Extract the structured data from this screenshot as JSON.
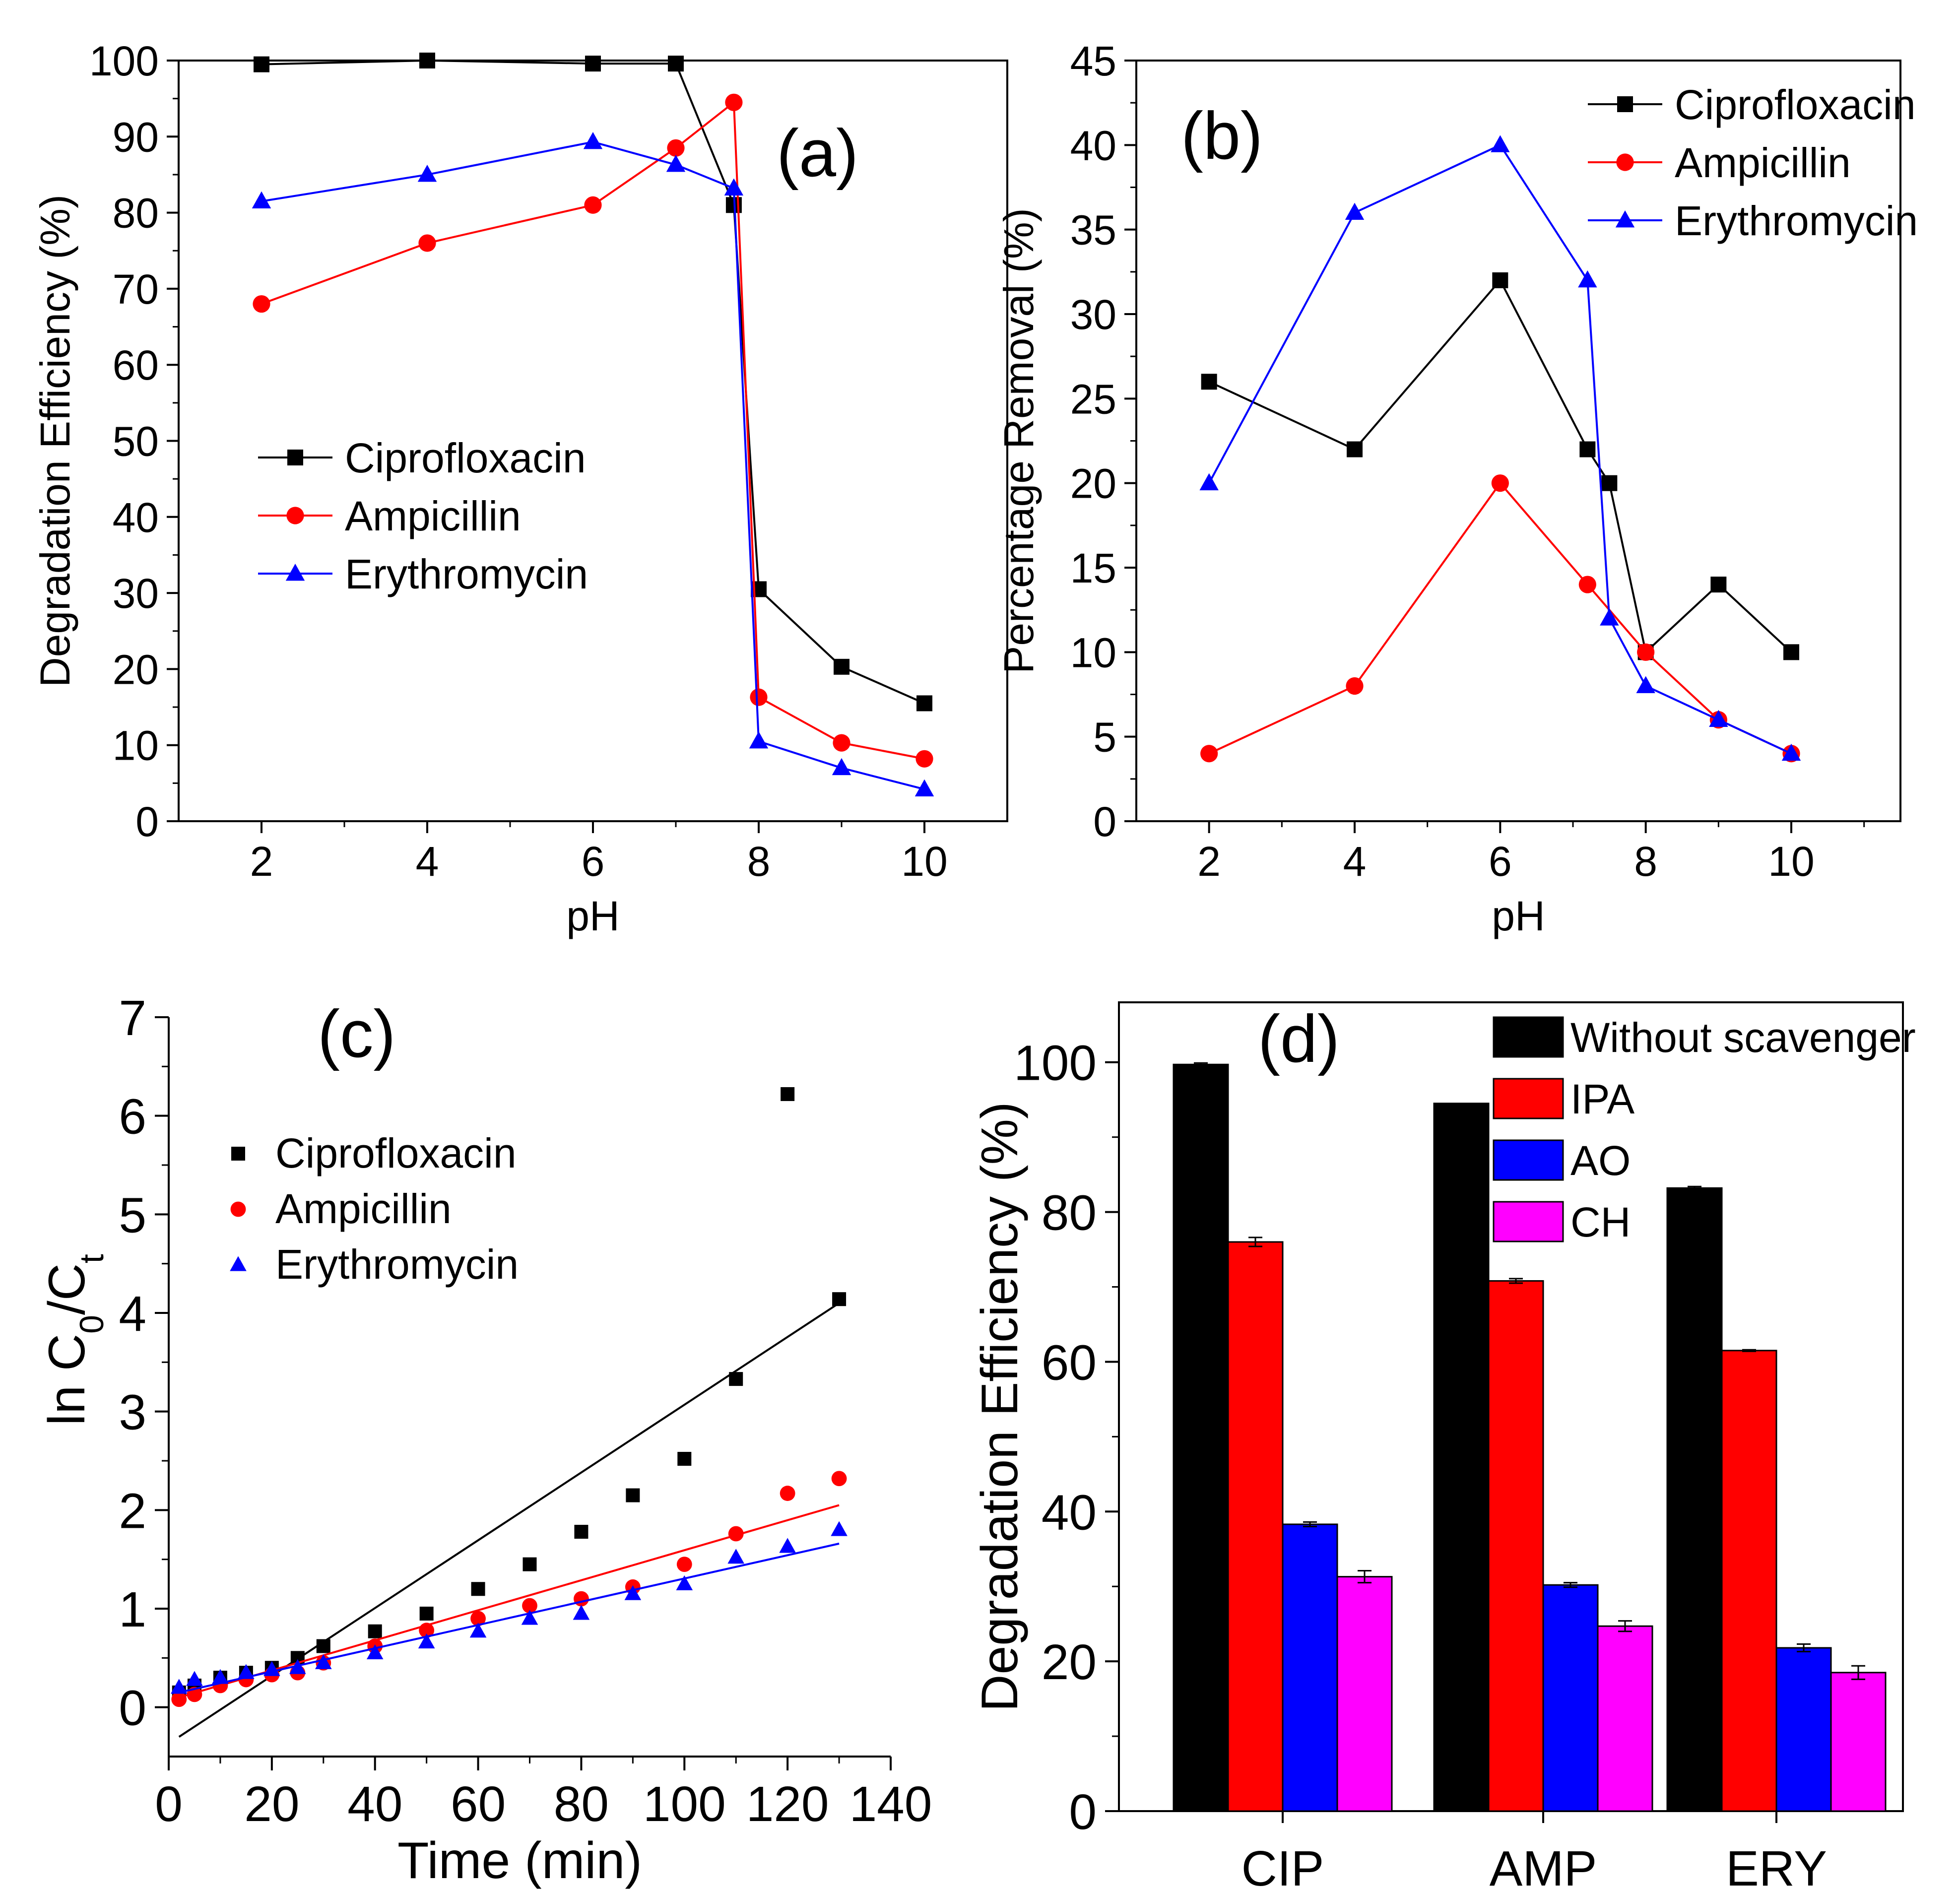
{
  "chart_data": [
    {
      "panel": "(a)",
      "type": "line",
      "xlabel": "pH",
      "ylabel": "Degradation Efficiency (%)",
      "xlim": [
        1,
        11
      ],
      "ylim": [
        0,
        100
      ],
      "xticks": [
        2,
        4,
        6,
        8,
        10
      ],
      "yticks": [
        0,
        10,
        20,
        30,
        40,
        50,
        60,
        70,
        80,
        90,
        100
      ],
      "legend_position": "center-left",
      "series": [
        {
          "name": "Ciprofloxacin",
          "color": "#000000",
          "marker": "square",
          "x": [
            2,
            4,
            6,
            7,
            7.7,
            8,
            9,
            10
          ],
          "y": [
            99.5,
            100,
            99.6,
            99.6,
            81,
            30.5,
            20.3,
            15.5
          ]
        },
        {
          "name": "Ampicillin",
          "color": "#ff0000",
          "marker": "circle",
          "x": [
            2,
            4,
            6,
            7,
            7.7,
            8,
            9,
            10
          ],
          "y": [
            68,
            76,
            81,
            88.5,
            94.5,
            16.3,
            10.3,
            8.2
          ]
        },
        {
          "name": "Erythromycin",
          "color": "#0000ff",
          "marker": "triangle",
          "x": [
            2,
            4,
            6,
            7,
            7.7,
            8,
            9,
            10
          ],
          "y": [
            81.5,
            85,
            89.3,
            86.3,
            83.2,
            10.5,
            7,
            4.2
          ]
        }
      ]
    },
    {
      "panel": "(b)",
      "type": "line",
      "xlabel": "pH",
      "ylabel": "Percentage Removal (%)",
      "xlim": [
        1,
        11.5
      ],
      "ylim": [
        0,
        45
      ],
      "xticks": [
        2,
        4,
        6,
        8,
        10
      ],
      "yticks": [
        0,
        5,
        10,
        15,
        20,
        25,
        30,
        35,
        40,
        45
      ],
      "legend_position": "top-right",
      "series": [
        {
          "name": "Ciprofloxacin",
          "color": "#000000",
          "marker": "square",
          "x": [
            2,
            4,
            6,
            7.2,
            7.5,
            8,
            9,
            10
          ],
          "y": [
            26,
            22,
            32,
            22,
            20,
            10,
            14,
            10
          ]
        },
        {
          "name": "Ampicillin",
          "color": "#ff0000",
          "marker": "circle",
          "x": [
            2,
            4,
            6,
            7.2,
            8,
            9,
            10
          ],
          "y": [
            4,
            8,
            20,
            14,
            10,
            6,
            4
          ]
        },
        {
          "name": "Erythromycin",
          "color": "#0000ff",
          "marker": "triangle",
          "x": [
            2,
            4,
            6,
            7.2,
            7.5,
            8,
            9,
            10
          ],
          "y": [
            20,
            36,
            40,
            32,
            12,
            8,
            6,
            4
          ]
        }
      ]
    },
    {
      "panel": "(c)",
      "type": "scatter",
      "xlabel": "Time (min)",
      "ylabel_main": "ln C",
      "ylabel_sub1": "0",
      "ylabel_mid": "/C",
      "ylabel_sub2": "t",
      "xlim": [
        0,
        140
      ],
      "ylim": [
        -0.5,
        7
      ],
      "xticks": [
        0,
        20,
        40,
        60,
        80,
        100,
        120,
        140
      ],
      "yticks": [
        0,
        1,
        2,
        3,
        4,
        5,
        6,
        7
      ],
      "legend_position": "top-left",
      "series": [
        {
          "name": "Ciprofloxacin",
          "color": "#000000",
          "marker": "square",
          "x": [
            2,
            5,
            10,
            15,
            20,
            25,
            30,
            40,
            50,
            60,
            70,
            80,
            90,
            100,
            110,
            120,
            130
          ],
          "y": [
            0.15,
            0.22,
            0.3,
            0.35,
            0.4,
            0.5,
            0.62,
            0.77,
            0.95,
            1.2,
            1.45,
            1.78,
            2.15,
            2.52,
            3.33,
            6.22,
            4.14
          ],
          "fit": [
            [
              2,
              -0.3
            ],
            [
              130,
              4.1
            ]
          ]
        },
        {
          "name": "Ampicillin",
          "color": "#ff0000",
          "marker": "circle",
          "x": [
            2,
            5,
            10,
            15,
            20,
            25,
            30,
            40,
            50,
            60,
            70,
            80,
            90,
            100,
            110,
            120,
            130
          ],
          "y": [
            0.08,
            0.13,
            0.22,
            0.28,
            0.33,
            0.35,
            0.45,
            0.62,
            0.78,
            0.9,
            1.03,
            1.1,
            1.22,
            1.45,
            1.76,
            2.17,
            2.32
          ],
          "fit": [
            [
              2,
              0.1
            ],
            [
              130,
              2.05
            ]
          ]
        },
        {
          "name": "Erythromycin",
          "color": "#0000ff",
          "marker": "triangle",
          "x": [
            2,
            5,
            10,
            15,
            20,
            25,
            30,
            40,
            50,
            60,
            70,
            80,
            90,
            100,
            110,
            120,
            130
          ],
          "y": [
            0.2,
            0.28,
            0.3,
            0.35,
            0.38,
            0.4,
            0.45,
            0.55,
            0.66,
            0.77,
            0.9,
            0.95,
            1.15,
            1.25,
            1.52,
            1.63,
            1.8
          ],
          "fit": [
            [
              2,
              0.15
            ],
            [
              130,
              1.66
            ]
          ]
        }
      ]
    },
    {
      "panel": "(d)",
      "type": "bar",
      "ylabel": "Degradation Efficiency (%)",
      "ylim": [
        0,
        108
      ],
      "yticks": [
        0,
        20,
        40,
        60,
        80,
        100
      ],
      "categories": [
        "CIP",
        "AMP",
        "ERY"
      ],
      "legend_position": "top-right",
      "series": [
        {
          "name": "Without scavenger",
          "color": "#000000",
          "values": [
            99.7,
            94.5,
            83.2
          ],
          "errors": [
            0.2,
            0,
            0.2
          ]
        },
        {
          "name": "IPA",
          "color": "#ff0000",
          "values": [
            76,
            70.8,
            61.5
          ],
          "errors": [
            0.6,
            0.3,
            0.1
          ]
        },
        {
          "name": "AO",
          "color": "#0000ff",
          "values": [
            38.3,
            30.2,
            21.8
          ],
          "errors": [
            0.3,
            0.3,
            0.5
          ]
        },
        {
          "name": "CH",
          "color": "#ff00ff",
          "values": [
            31.3,
            24.7,
            18.5
          ],
          "errors": [
            0.8,
            0.7,
            0.9
          ]
        }
      ]
    }
  ]
}
